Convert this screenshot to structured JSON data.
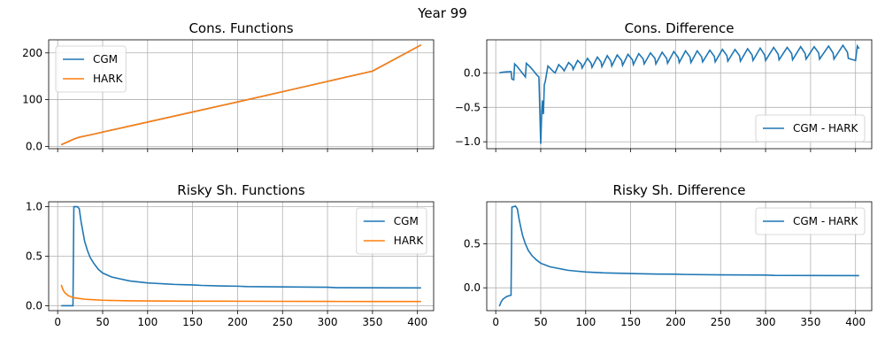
{
  "suptitle": "Year 99",
  "colors": {
    "CGM": "#1f77b4",
    "HARK": "#ff7f0e",
    "CGM - HARK": "#1f77b4",
    "grid": "#b0b0b0"
  },
  "chart_data": [
    {
      "type": "line",
      "title": "Cons. Functions",
      "xlim": [
        -10,
        418
      ],
      "ylim": [
        -5,
        228
      ],
      "xticks": [
        0,
        50,
        100,
        150,
        200,
        250,
        300,
        350,
        400
      ],
      "show_xticklabels": false,
      "yticks": [
        0,
        100,
        200
      ],
      "grid": true,
      "legend": "top-left",
      "series": [
        {
          "name": "CGM",
          "x": [
            4,
            10,
            15,
            20,
            25,
            30,
            40,
            50,
            100,
            150,
            200,
            250,
            300,
            350,
            404
          ],
          "y": [
            3.5,
            8.5,
            13,
            17,
            20,
            22,
            26,
            30.5,
            52,
            73.5,
            95,
            117,
            139,
            161,
            217
          ]
        },
        {
          "name": "HARK",
          "x": [
            4,
            10,
            15,
            20,
            25,
            30,
            40,
            50,
            100,
            150,
            200,
            250,
            300,
            350,
            404
          ],
          "y": [
            3.5,
            8.5,
            13,
            17,
            20,
            22,
            26,
            30.5,
            52,
            73.5,
            95,
            117,
            139,
            161,
            217
          ]
        }
      ]
    },
    {
      "type": "line",
      "title": "Cons. Difference",
      "xlim": [
        -10,
        418
      ],
      "ylim": [
        -1.1,
        0.48
      ],
      "xticks": [
        0,
        50,
        100,
        150,
        200,
        250,
        300,
        350,
        400
      ],
      "show_xticklabels": false,
      "yticks": [
        -1.0,
        -0.5,
        0.0
      ],
      "ytick_labels": [
        "−1.0",
        "−0.5",
        "0.0"
      ],
      "grid": true,
      "legend": "bottom-right",
      "series": [
        {
          "name": "CGM - HARK",
          "x": [
            4,
            8,
            12,
            17,
            18,
            20,
            21,
            24,
            27,
            30,
            33,
            34,
            38,
            42,
            45,
            48,
            50,
            51,
            52,
            53,
            54,
            55,
            58,
            61,
            64,
            66,
            70,
            74,
            76,
            81,
            85,
            86,
            91,
            95,
            96,
            102,
            106,
            107,
            113,
            117,
            118,
            124,
            128,
            129,
            135,
            140,
            141,
            147,
            152,
            153,
            159,
            164,
            165,
            172,
            177,
            178,
            185,
            190,
            191,
            198,
            203,
            204,
            211,
            216,
            217,
            224,
            229,
            230,
            238,
            243,
            244,
            252,
            257,
            258,
            266,
            271,
            272,
            280,
            285,
            286,
            294,
            299,
            300,
            309,
            314,
            315,
            324,
            329,
            330,
            339,
            344,
            345,
            354,
            359,
            360,
            370,
            375,
            376,
            386,
            391,
            392,
            400,
            402,
            404
          ],
          "y": [
            0.0,
            0.01,
            0.015,
            0.02,
            -0.09,
            -0.1,
            0.13,
            0.09,
            0.04,
            -0.01,
            -0.06,
            0.14,
            0.09,
            0.03,
            -0.02,
            -0.06,
            -1.03,
            -0.62,
            -0.4,
            -0.6,
            -0.17,
            -0.13,
            0.1,
            0.06,
            0.02,
            0.0,
            0.12,
            0.07,
            0.03,
            0.15,
            0.1,
            0.05,
            0.18,
            0.13,
            0.07,
            0.21,
            0.14,
            0.08,
            0.23,
            0.16,
            0.09,
            0.25,
            0.17,
            0.1,
            0.26,
            0.18,
            0.11,
            0.27,
            0.19,
            0.12,
            0.28,
            0.2,
            0.13,
            0.29,
            0.21,
            0.13,
            0.3,
            0.21,
            0.14,
            0.31,
            0.22,
            0.15,
            0.32,
            0.23,
            0.15,
            0.32,
            0.23,
            0.16,
            0.33,
            0.24,
            0.16,
            0.34,
            0.25,
            0.17,
            0.34,
            0.25,
            0.17,
            0.35,
            0.26,
            0.18,
            0.36,
            0.26,
            0.18,
            0.37,
            0.27,
            0.19,
            0.37,
            0.28,
            0.19,
            0.38,
            0.28,
            0.2,
            0.38,
            0.29,
            0.2,
            0.39,
            0.29,
            0.2,
            0.4,
            0.3,
            0.21,
            0.18,
            0.39,
            0.35
          ]
        }
      ]
    },
    {
      "type": "line",
      "title": "Risky Sh. Functions",
      "xlim": [
        -10,
        418
      ],
      "ylim": [
        -0.05,
        1.05
      ],
      "xticks": [
        0,
        50,
        100,
        150,
        200,
        250,
        300,
        350,
        400
      ],
      "show_xticklabels": true,
      "yticks": [
        0.0,
        0.5,
        1.0
      ],
      "grid": true,
      "legend": "top-right",
      "series": [
        {
          "name": "CGM",
          "x": [
            4,
            10,
            15,
            17,
            18,
            20,
            22,
            24,
            26,
            28,
            30,
            33,
            36,
            40,
            45,
            50,
            55,
            60,
            70,
            80,
            90,
            100,
            110,
            120,
            130,
            140,
            150,
            160,
            180,
            200,
            210,
            250,
            300,
            310,
            350,
            404
          ],
          "y": [
            0.0,
            0.0,
            0.0,
            0.0,
            1.0,
            1.0,
            1.0,
            0.98,
            0.85,
            0.75,
            0.65,
            0.56,
            0.49,
            0.43,
            0.37,
            0.33,
            0.31,
            0.29,
            0.27,
            0.25,
            0.24,
            0.23,
            0.225,
            0.22,
            0.215,
            0.212,
            0.21,
            0.205,
            0.2,
            0.197,
            0.193,
            0.19,
            0.186,
            0.182,
            0.181,
            0.18
          ]
        },
        {
          "name": "HARK",
          "x": [
            4,
            6,
            8,
            10,
            12,
            15,
            18,
            22,
            26,
            30,
            40,
            50,
            75,
            100,
            150,
            200,
            250,
            300,
            350,
            404
          ],
          "y": [
            0.21,
            0.16,
            0.13,
            0.115,
            0.1,
            0.09,
            0.08,
            0.075,
            0.07,
            0.065,
            0.06,
            0.055,
            0.05,
            0.048,
            0.046,
            0.045,
            0.044,
            0.043,
            0.042,
            0.042
          ]
        }
      ]
    },
    {
      "type": "line",
      "title": "Risky Sh. Difference",
      "xlim": [
        -10,
        418
      ],
      "ylim": [
        -0.26,
        0.98
      ],
      "xticks": [
        0,
        50,
        100,
        150,
        200,
        250,
        300,
        350,
        400
      ],
      "show_xticklabels": true,
      "yticks": [
        0.0,
        0.5
      ],
      "grid": true,
      "legend": "top-right",
      "series": [
        {
          "name": "CGM - HARK",
          "x": [
            4,
            6,
            8,
            10,
            12,
            15,
            17,
            18,
            20,
            22,
            24,
            26,
            28,
            30,
            33,
            36,
            40,
            45,
            50,
            55,
            60,
            70,
            80,
            90,
            100,
            110,
            120,
            130,
            140,
            150,
            160,
            180,
            200,
            210,
            250,
            300,
            310,
            350,
            404
          ],
          "y": [
            -0.21,
            -0.16,
            -0.13,
            -0.115,
            -0.1,
            -0.09,
            -0.085,
            0.92,
            0.925,
            0.93,
            0.9,
            0.78,
            0.68,
            0.59,
            0.5,
            0.43,
            0.37,
            0.32,
            0.28,
            0.26,
            0.24,
            0.22,
            0.2,
            0.19,
            0.18,
            0.175,
            0.17,
            0.168,
            0.165,
            0.163,
            0.16,
            0.157,
            0.155,
            0.152,
            0.148,
            0.145,
            0.141,
            0.14,
            0.139
          ]
        }
      ]
    }
  ]
}
